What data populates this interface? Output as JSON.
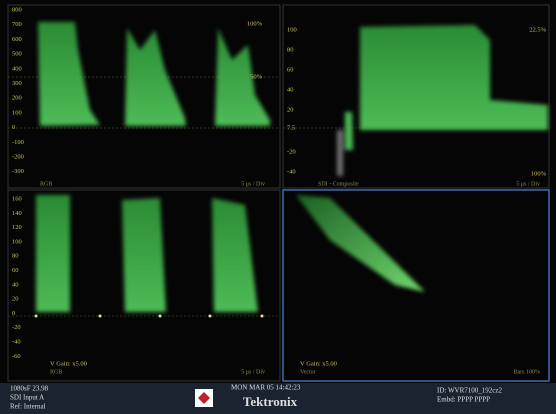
{
  "panels": [
    {
      "ticks": [
        "800",
        "700",
        "600",
        "500",
        "400",
        "300",
        "200",
        "100",
        "0",
        "-100",
        "-200",
        "-300"
      ],
      "right_top": "100%",
      "right_mid": "50%",
      "label": "RGB",
      "timebase": "5 μs / Div"
    },
    {
      "ticks": [
        "100",
        "80",
        "60",
        "40",
        "20",
        "7.5",
        "-20",
        "-40"
      ],
      "right_top": "22.5%",
      "right_bottom": "100%",
      "label": "SDI - Composite",
      "timebase": "5 μs / Div"
    },
    {
      "ticks": [
        "160",
        "140",
        "120",
        "100",
        "80",
        "60",
        "40",
        "20",
        "0",
        "-20",
        "-40",
        "-60"
      ],
      "gain": "V Gain: x5.00",
      "label": "RGB",
      "timebase": "5 μs / Div"
    },
    {
      "gain": "V Gain: x5.00",
      "label": "Vector",
      "mode": "Bars 100%"
    }
  ],
  "status": {
    "format": "1080sF 23.98",
    "input": "SDI Input A",
    "ref": "Ref: Internal",
    "date": "MON MAR 05 14:42:23",
    "brand": "Tektronix",
    "id": "ID: WVR7100_192cz2",
    "embedded": "Embd: PPPP PPPP"
  }
}
